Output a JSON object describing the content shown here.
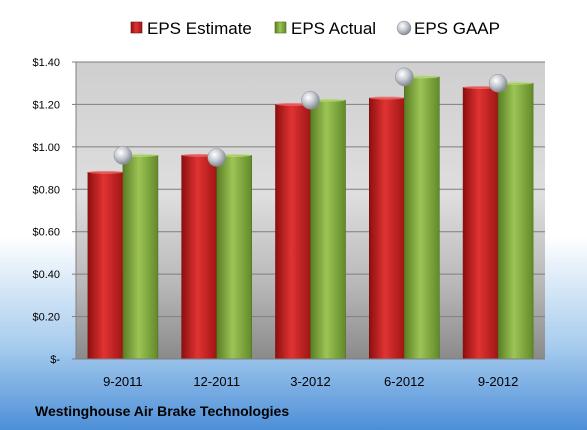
{
  "chart_data": {
    "type": "bar",
    "categories": [
      "9-2011",
      "12-2011",
      "3-2012",
      "6-2012",
      "9-2012"
    ],
    "series": [
      {
        "name": "EPS Estimate",
        "type": "bar",
        "color": "#cc1f1f",
        "values": [
          0.88,
          0.96,
          1.2,
          1.23,
          1.28
        ]
      },
      {
        "name": "EPS Actual",
        "type": "bar",
        "color": "#7fa83a",
        "values": [
          0.96,
          0.96,
          1.22,
          1.33,
          1.3
        ]
      },
      {
        "name": "EPS GAAP",
        "type": "scatter",
        "color": "#b8bcc4",
        "values": [
          0.96,
          0.95,
          1.22,
          1.33,
          1.3
        ]
      }
    ],
    "yticks": [
      "$-",
      "$0.20",
      "$0.40",
      "$0.60",
      "$0.80",
      "$1.00",
      "$1.20",
      "$1.40"
    ],
    "ylim": [
      0,
      1.4
    ],
    "ystep": 0.2,
    "grid": true,
    "legend_position": "top",
    "footer": "Westinghouse Air Brake Technologies"
  }
}
